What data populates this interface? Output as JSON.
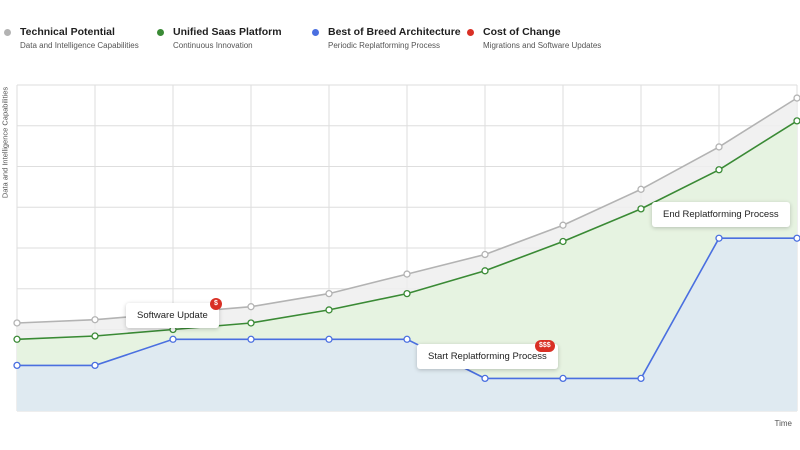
{
  "legend": [
    {
      "name": "Technical Potential",
      "sub": "Data and Intelligence Capabilities",
      "color": "#b3b3b3"
    },
    {
      "name": "Unified Saas Platform",
      "sub": "Continuous Innovation",
      "color": "#3a8a35"
    },
    {
      "name": "Best of Breed Architecture",
      "sub": "Periodic Replatforming Process",
      "color": "#4a6fe0"
    },
    {
      "name": "Cost of Change",
      "sub": "Migrations and Software Updates",
      "color": "#d93025"
    }
  ],
  "axes": {
    "ylabel": "Data and Intelligence Capabilities",
    "xlabel": "Time"
  },
  "annotations": {
    "software_update": {
      "label": "Software Update",
      "badge": "$"
    },
    "start_replatforming": {
      "label": "Start Replatforming Process",
      "badge": "$$$"
    },
    "end_replatforming": {
      "label": "End Replatforming Process"
    }
  },
  "chart_data": {
    "type": "line",
    "x": [
      0,
      1,
      2,
      3,
      4,
      5,
      6,
      7,
      8,
      9,
      10
    ],
    "xlim": [
      0,
      10
    ],
    "ylim": [
      0,
      100
    ],
    "grid": true,
    "legend_position": "top",
    "xlabel": "Time",
    "ylabel": "Data and Intelligence Capabilities",
    "series": [
      {
        "name": "Technical Potential",
        "color": "#b3b3b3",
        "values": [
          27,
          28,
          30,
          32,
          36,
          42,
          48,
          57,
          68,
          81,
          96
        ]
      },
      {
        "name": "Unified Saas Platform",
        "color": "#3a8a35",
        "values": [
          22,
          23,
          25,
          27,
          31,
          36,
          43,
          52,
          62,
          74,
          89
        ]
      },
      {
        "name": "Best of Breed Architecture",
        "color": "#4a6fe0",
        "values": [
          14,
          14,
          22,
          22,
          22,
          22,
          10,
          10,
          10,
          53,
          53
        ]
      }
    ]
  }
}
